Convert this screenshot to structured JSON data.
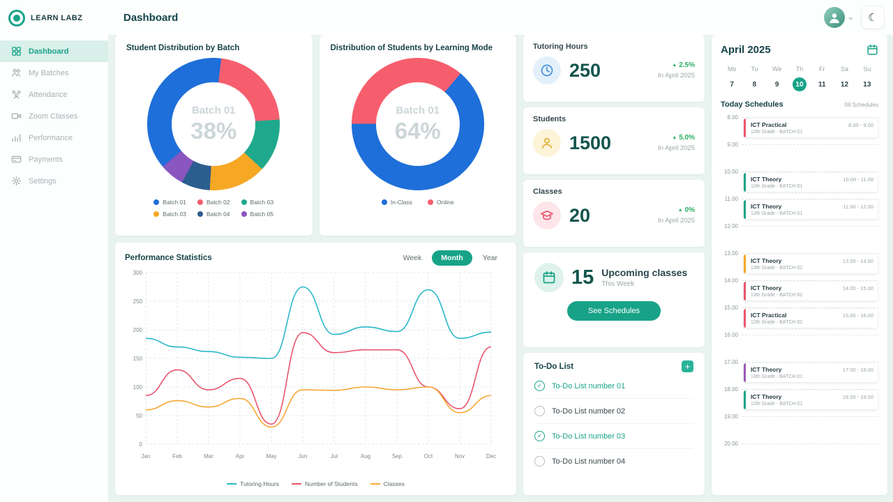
{
  "brand": {
    "name": "LEARN LABZ"
  },
  "header": {
    "title": "Dashboard"
  },
  "icons": {
    "trend_up": "▲",
    "add": "+",
    "chevron_down": "⌄"
  },
  "sidebar": {
    "items": [
      {
        "label": "Dashboard",
        "icon": "dashboard-icon",
        "active": true
      },
      {
        "label": "My Batches",
        "icon": "batches-icon",
        "active": false
      },
      {
        "label": "Attendance",
        "icon": "attendance-icon",
        "active": false
      },
      {
        "label": "Zoom Classes",
        "icon": "zoom-icon",
        "active": false
      },
      {
        "label": "Performance",
        "icon": "performance-icon",
        "active": false
      },
      {
        "label": "Payments",
        "icon": "payments-icon",
        "active": false
      },
      {
        "label": "Settings",
        "icon": "settings-icon",
        "active": false
      }
    ]
  },
  "chart_data": [
    {
      "type": "pie",
      "title": "Student Distribution by Batch",
      "center_label": "Batch 01",
      "center_value": "38%",
      "segments": [
        {
          "label": "Batch 01",
          "value": 38,
          "color": "#1e6fd9"
        },
        {
          "label": "Batch 02",
          "value": 22,
          "color": "#f65e6d"
        },
        {
          "label": "Batch 03",
          "value": 13,
          "color": "#1fa98c"
        },
        {
          "label": "Batch 03",
          "value": 14,
          "color": "#f6a723"
        },
        {
          "label": "Batch 04",
          "value": 7,
          "color": "#2c5d8f"
        },
        {
          "label": "Batch 05",
          "value": 6,
          "color": "#8a56c0"
        }
      ]
    },
    {
      "type": "pie",
      "title": "Distribution of Students by Learning Mode",
      "center_label": "Batch 01",
      "center_value": "64%",
      "segments": [
        {
          "label": "In-Class",
          "value": 64,
          "color": "#1e6fd9"
        },
        {
          "label": "Online",
          "value": 36,
          "color": "#f65e6d"
        }
      ]
    },
    {
      "type": "line",
      "title": "Performance Statistics",
      "tabs": [
        "Week",
        "Month",
        "Year"
      ],
      "active_tab": "Month",
      "x": [
        "Jan",
        "Feb",
        "Mar",
        "Apr",
        "May",
        "Jun",
        "Jul",
        "Aug",
        "Sep",
        "Oct",
        "Nov",
        "Dec"
      ],
      "ylim": [
        0,
        300
      ],
      "yticks": [
        0,
        50,
        100,
        150,
        200,
        250,
        300
      ],
      "series": [
        {
          "name": "Tutoring Hours",
          "color": "#2ab7c9",
          "values": [
            185,
            170,
            162,
            152,
            150,
            275,
            192,
            205,
            197,
            270,
            185,
            196
          ]
        },
        {
          "name": "Number of Students",
          "color": "#e8556d",
          "values": [
            85,
            130,
            95,
            115,
            35,
            195,
            160,
            165,
            165,
            100,
            62,
            170
          ]
        },
        {
          "name": "Classes",
          "color": "#f6a735",
          "values": [
            60,
            76,
            65,
            80,
            30,
            95,
            94,
            100,
            95,
            100,
            55,
            85
          ]
        }
      ]
    }
  ],
  "stats": {
    "items": [
      {
        "title": "Tutoring Hours",
        "value": "250",
        "change": "2.5%",
        "period": "In April 2025",
        "icon": "clock-icon",
        "icon_bg": "#e3f0fb",
        "icon_color": "#4a90d9"
      },
      {
        "title": "Students",
        "value": "1500",
        "change": "5.0%",
        "period": "In April 2025",
        "icon": "student-icon",
        "icon_bg": "#fdf3d8",
        "icon_color": "#e0ae35"
      },
      {
        "title": "Classes",
        "value": "20",
        "change": "0%",
        "period": "In April 2025",
        "icon": "class-icon",
        "icon_bg": "#fde5e9",
        "icon_color": "#e8556d"
      }
    ]
  },
  "upcoming": {
    "value": "15",
    "title": "Upcoming classes",
    "subtitle": "This Week",
    "button": "See Schedules"
  },
  "todo": {
    "title": "To-Do List",
    "items": [
      {
        "text": "To-Do List number 01",
        "done": true
      },
      {
        "text": "To-Do List number 02",
        "done": false
      },
      {
        "text": "To-Do List number 03",
        "done": true
      },
      {
        "text": "To-Do List number 04",
        "done": false
      }
    ]
  },
  "calendar": {
    "month": "April 2025",
    "weekdays": [
      "Mo",
      "Tu",
      "We",
      "Th",
      "Fr",
      "Sa",
      "Su"
    ],
    "dates": [
      7,
      8,
      9,
      10,
      11,
      12,
      13
    ],
    "selected_date": 10,
    "schedules_title": "Today Schedules",
    "schedules_count": "08 Schedules",
    "hours": [
      "8.00",
      "9.00",
      "10.00",
      "11.00",
      "12.00",
      "13.00",
      "14.00",
      "15.00",
      "16.00",
      "17.00",
      "18.00",
      "19.00",
      "20.00"
    ],
    "events": [
      {
        "title": "ICT Practical",
        "grade": "12th Grade - BATCH 01",
        "time": "8.00 - 9.00",
        "hour": 8,
        "color": "#f1566b"
      },
      {
        "title": "ICT Theory",
        "grade": "10th Grade - BATCH 01",
        "time": "10.00 - 11.00",
        "hour": 10,
        "color": "#18a388"
      },
      {
        "title": "ICT Theory",
        "grade": "12th Grade - BATCH 01",
        "time": "11.00 - 12.00",
        "hour": 11,
        "color": "#18a388"
      },
      {
        "title": "ICT Theory",
        "grade": "13th Grade - BATCH 02",
        "time": "13.00 - 14.00",
        "hour": 13,
        "color": "#f6a723"
      },
      {
        "title": "ICT Theory",
        "grade": "13th Grade - BATCH 02",
        "time": "14.00 - 15.00",
        "hour": 14,
        "color": "#e8556d"
      },
      {
        "title": "ICT Practical",
        "grade": "12th Grade - BATCH 02",
        "time": "15.00 - 16.00",
        "hour": 15,
        "color": "#f1566b"
      },
      {
        "title": "ICT Theory",
        "grade": "13th Grade - BATCH 01",
        "time": "17.00 - 18.00",
        "hour": 17,
        "color": "#9b59b6"
      },
      {
        "title": "ICT Theory",
        "grade": "12th Grade - BATCH 01",
        "time": "18.00 - 19.00",
        "hour": 18,
        "color": "#18a388"
      }
    ]
  }
}
